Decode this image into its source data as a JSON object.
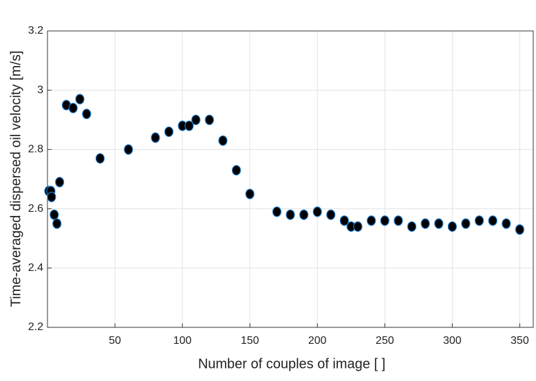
{
  "chart_data": {
    "type": "scatter",
    "xlabel": "Number of couples of image [ ]",
    "ylabel": "Time-averaged dispersed oil velocity [m/s]",
    "xlim": [
      0,
      360
    ],
    "xticks": [
      50,
      100,
      150,
      200,
      250,
      300,
      350
    ],
    "ylim": [
      2.2,
      3.2
    ],
    "yticks": [
      2.2,
      2.4,
      2.6,
      2.8,
      3,
      3.2
    ],
    "grid": true,
    "series": [
      {
        "color": "#000000",
        "x": [
          1,
          2.5,
          3,
          5,
          7,
          9,
          14,
          19,
          24,
          29,
          39,
          60,
          80,
          90,
          100,
          105,
          110,
          120,
          130,
          140,
          150,
          170,
          180,
          190,
          200,
          210,
          220,
          225,
          230,
          240,
          250,
          260,
          270,
          280,
          290,
          300,
          310,
          320,
          330,
          340,
          350
        ],
        "values": [
          2.66,
          2.66,
          2.64,
          2.58,
          2.55,
          2.69,
          2.95,
          2.94,
          2.97,
          2.92,
          2.77,
          2.8,
          2.84,
          2.86,
          2.88,
          2.88,
          2.9,
          2.9,
          2.83,
          2.73,
          2.65,
          2.59,
          2.58,
          2.58,
          2.59,
          2.58,
          2.56,
          2.54,
          2.54,
          2.56,
          2.56,
          2.56,
          2.54,
          2.55,
          2.55,
          2.54,
          2.55,
          2.56,
          2.56,
          2.55,
          2.53
        ]
      }
    ]
  }
}
